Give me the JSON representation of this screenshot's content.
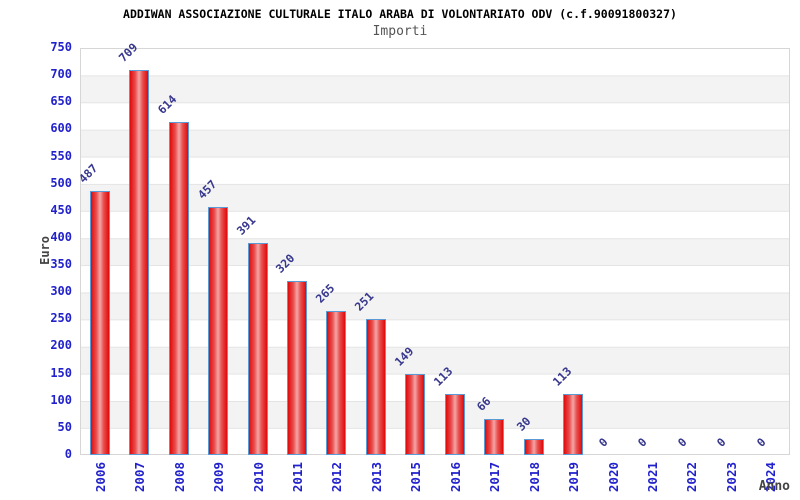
{
  "chart_data": {
    "type": "bar",
    "title": "ADDIWAN ASSOCIAZIONE CULTURALE ITALO ARABA DI VOLONTARIATO ODV (c.f.90091800327)",
    "subtitle": "Importi",
    "xlabel": "Anno",
    "ylabel": "Euro",
    "categories": [
      "2006",
      "2007",
      "2008",
      "2009",
      "2010",
      "2011",
      "2012",
      "2013",
      "2015",
      "2016",
      "2017",
      "2018",
      "2019",
      "2020",
      "2021",
      "2022",
      "2023",
      "2024"
    ],
    "values": [
      487,
      709,
      614,
      457,
      391,
      320,
      265,
      251,
      149,
      113,
      66,
      30,
      113,
      0,
      0,
      0,
      0,
      0
    ],
    "ylim": [
      0,
      750
    ],
    "ytick_step": 50,
    "yticks": [
      0,
      50,
      100,
      150,
      200,
      250,
      300,
      350,
      400,
      450,
      500,
      550,
      600,
      650,
      700,
      750
    ],
    "grid": "horizontal alternating bands every 50",
    "legend": "none",
    "value_labels": "rotated 45deg above bars",
    "x_labels": "rotated 90deg",
    "colors": {
      "bar_dark": "#e00a0a",
      "bar_mid": "#e85050",
      "bar_light": "#f4a6a6",
      "bar_border": "#5b9bd5",
      "tick_label_blue": "#2222cc",
      "value_label_navy": "#38388e",
      "axis_title_gray": "#444444",
      "band_gray": "#f3f3f3",
      "grid_line": "#e4e4e4",
      "title_color": "#000000",
      "subtitle_color": "#555555"
    }
  }
}
